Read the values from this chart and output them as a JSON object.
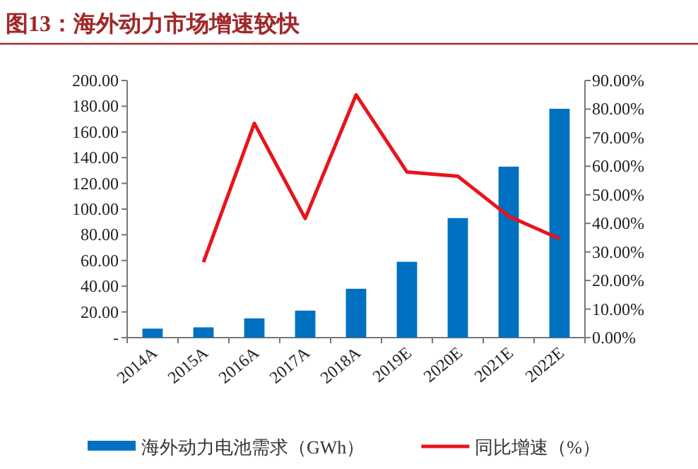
{
  "chart_data": {
    "type": "bar",
    "title": "图13：海外动力市场增速较快",
    "categories": [
      "2014A",
      "2015A",
      "2016A",
      "2017A",
      "2018A",
      "2019E",
      "2020E",
      "2021E",
      "2022E"
    ],
    "series": [
      {
        "name": "海外动力电池需求（GWh）",
        "color": "#0070c0",
        "values": [
          7,
          8,
          15,
          21,
          38,
          59,
          93,
          133,
          178
        ]
      },
      {
        "name": "同比增速（%）",
        "type": "line",
        "axis": "y2",
        "color": "#e8141c",
        "values": [
          null,
          26.4,
          75,
          41.7,
          85,
          58,
          56.5,
          42.5,
          34.6
        ]
      }
    ],
    "ylim": [
      0,
      200
    ],
    "yticks": [
      {
        "value": 0,
        "label": "-"
      },
      {
        "value": 20,
        "label": "20.00"
      },
      {
        "value": 40,
        "label": "40.00"
      },
      {
        "value": 60,
        "label": "60.00"
      },
      {
        "value": 80,
        "label": "80.00"
      },
      {
        "value": 100,
        "label": "100.00"
      },
      {
        "value": 120,
        "label": "120.00"
      },
      {
        "value": 140,
        "label": "140.00"
      },
      {
        "value": 160,
        "label": "160.00"
      },
      {
        "value": 180,
        "label": "180.00"
      },
      {
        "value": 200,
        "label": "200.00"
      }
    ],
    "y2lim": [
      0,
      90
    ],
    "y2ticks": [
      {
        "value": 0,
        "label": "0.00%"
      },
      {
        "value": 10,
        "label": "10.00%"
      },
      {
        "value": 20,
        "label": "20.00%"
      },
      {
        "value": 30,
        "label": "30.00%"
      },
      {
        "value": 40,
        "label": "40.00%"
      },
      {
        "value": 50,
        "label": "50.00%"
      },
      {
        "value": 60,
        "label": "60.00%"
      },
      {
        "value": 70,
        "label": "70.00%"
      },
      {
        "value": 80,
        "label": "80.00%"
      },
      {
        "value": 90,
        "label": "90.00%"
      }
    ],
    "legend": "bottom",
    "grid": false
  }
}
